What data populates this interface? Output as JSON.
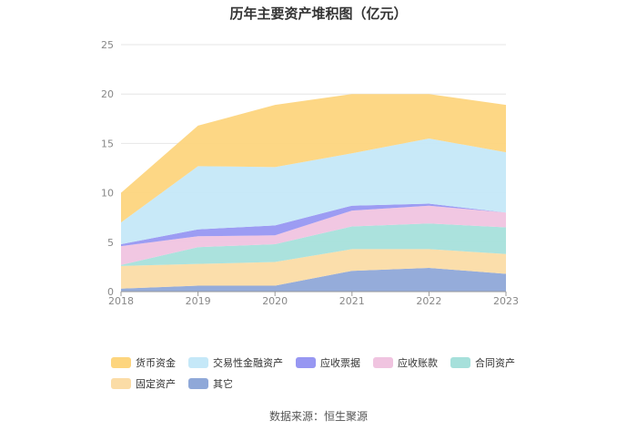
{
  "chart_data": {
    "type": "area",
    "title": "历年主要资产堆积图（亿元）",
    "stacked": true,
    "categories": [
      "2018",
      "2019",
      "2020",
      "2021",
      "2022",
      "2023"
    ],
    "ylim": [
      0,
      25
    ],
    "yticks": [
      0,
      5,
      10,
      15,
      20,
      25
    ],
    "grid": true,
    "legend_position": "bottom-left",
    "series": [
      {
        "name": "其它",
        "color": "#8fa8d8",
        "values": [
          0.3,
          0.6,
          0.6,
          2.1,
          2.4,
          1.8
        ]
      },
      {
        "name": "固定资产",
        "color": "#fbdca6",
        "values": [
          2.3,
          2.2,
          2.4,
          2.2,
          1.9,
          2.0
        ]
      },
      {
        "name": "合同资产",
        "color": "#a6e0db",
        "values": [
          0.1,
          1.7,
          1.8,
          2.3,
          2.6,
          2.7
        ]
      },
      {
        "name": "应收账款",
        "color": "#f0c4e0",
        "values": [
          1.9,
          1.1,
          0.9,
          1.6,
          1.8,
          1.5
        ]
      },
      {
        "name": "应收票据",
        "color": "#9797f2",
        "values": [
          0.2,
          0.7,
          1.0,
          0.5,
          0.2,
          0.0
        ]
      },
      {
        "name": "交易性金融资产",
        "color": "#c5e8f8",
        "values": [
          2.2,
          6.4,
          5.9,
          5.3,
          6.6,
          6.1
        ]
      },
      {
        "name": "货币资金",
        "color": "#fdd57e",
        "values": [
          3.0,
          4.1,
          6.3,
          6.0,
          4.5,
          4.8
        ]
      }
    ],
    "legend_order": [
      "货币资金",
      "交易性金融资产",
      "应收票据",
      "应收账款",
      "合同资产",
      "固定资产",
      "其它"
    ]
  },
  "source": "数据来源：恒生聚源"
}
